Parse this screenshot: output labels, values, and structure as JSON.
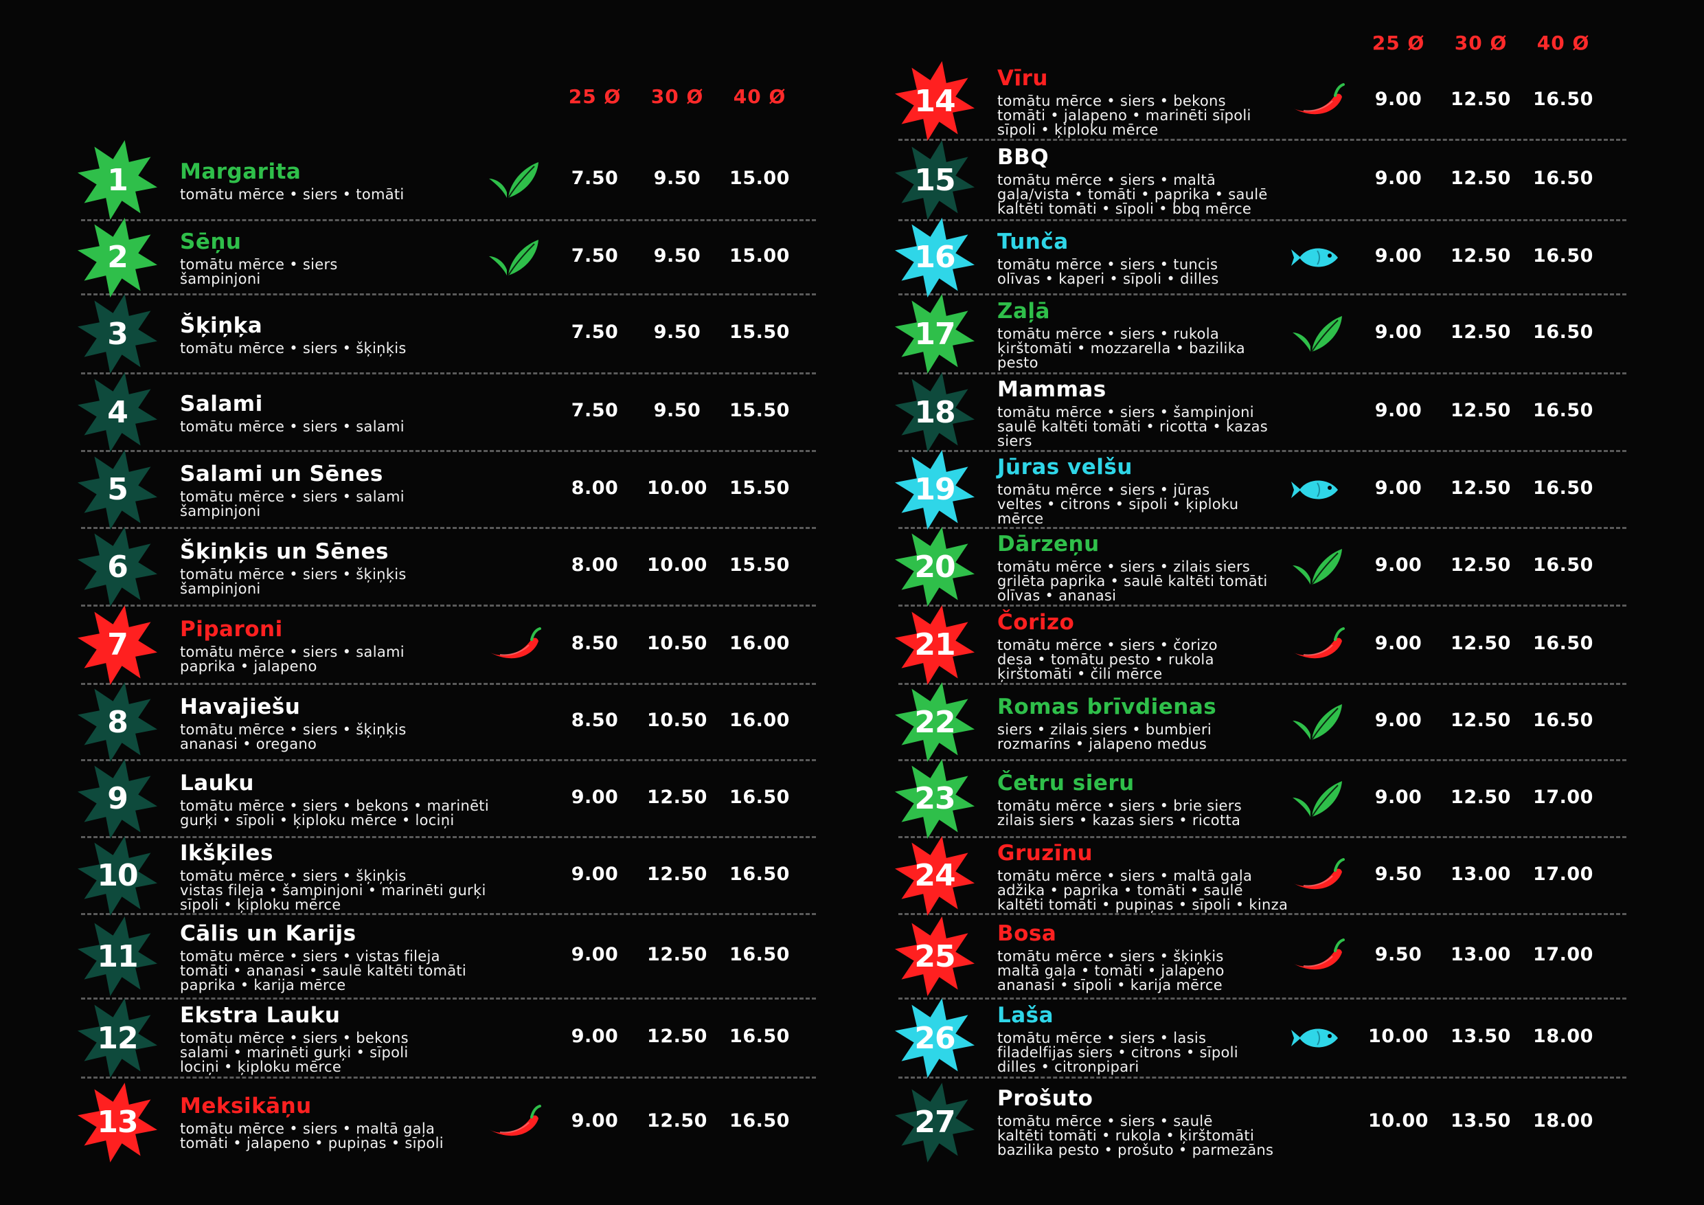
{
  "colors": {
    "background": "#060606",
    "price_header": "#ff2a2a",
    "veg": "#2fbf4a",
    "hot": "#ff2020",
    "fish": "#2fd6e8",
    "classic": "#0e4a3c",
    "divider": "#5a5a5a"
  },
  "icons": {
    "veg": "leaf-icon",
    "hot": "chili-pepper-icon",
    "fish": "fish-icon"
  },
  "sizes": [
    "25 Ø",
    "30 Ø",
    "40 Ø"
  ],
  "left_items": [
    {
      "number": "1",
      "name": "Margarita",
      "desc": "tomātu mērce • siers • tomāti",
      "type": "veg",
      "prices": [
        "7.50",
        "9.50",
        "15.00"
      ]
    },
    {
      "number": "2",
      "name": "Sēņu",
      "desc": "tomātu mērce • siers\nšampinjoni",
      "type": "veg",
      "prices": [
        "7.50",
        "9.50",
        "15.00"
      ]
    },
    {
      "number": "3",
      "name": "Šķiņķa",
      "desc": "tomātu mērce • siers • šķiņķis",
      "type": "classic",
      "prices": [
        "7.50",
        "9.50",
        "15.50"
      ]
    },
    {
      "number": "4",
      "name": "Salami",
      "desc": "tomātu mērce • siers • salami",
      "type": "classic",
      "prices": [
        "7.50",
        "9.50",
        "15.50"
      ]
    },
    {
      "number": "5",
      "name": "Salami un Sēnes",
      "desc": "tomātu mērce • siers • salami\nšampinjoni",
      "type": "classic",
      "prices": [
        "8.00",
        "10.00",
        "15.50"
      ]
    },
    {
      "number": "6",
      "name": "Šķiņķis un Sēnes",
      "desc": "tomātu mērce • siers • šķiņķis\nšampinjoni",
      "type": "classic",
      "prices": [
        "8.00",
        "10.00",
        "15.50"
      ]
    },
    {
      "number": "7",
      "name": "Piparoni",
      "desc": "tomātu mērce • siers • salami\npaprika • jalapeno",
      "type": "hot",
      "prices": [
        "8.50",
        "10.50",
        "16.00"
      ]
    },
    {
      "number": "8",
      "name": "Havajiešu",
      "desc": "tomātu mērce • siers • šķiņķis\nananasi • oregano",
      "type": "classic",
      "prices": [
        "8.50",
        "10.50",
        "16.00"
      ]
    },
    {
      "number": "9",
      "name": "Lauku",
      "desc": "tomātu mērce • siers • bekons • marinēti\ngurķi • sīpoli • ķiploku mērce • lociņi",
      "type": "classic",
      "prices": [
        "9.00",
        "12.50",
        "16.50"
      ]
    },
    {
      "number": "10",
      "name": "Ikšķiles",
      "desc": "tomātu mērce • siers • šķiņķis\nvistas fileja • šampinjoni • marinēti gurķi\nsīpoli • ķiploku mērce",
      "type": "classic",
      "prices": [
        "9.00",
        "12.50",
        "16.50"
      ]
    },
    {
      "number": "11",
      "name": "Cālis un Karijs",
      "desc": "tomātu mērce • siers • vistas fileja\ntomāti • ananasi • saulē kaltēti tomāti\npaprika • karija mērce",
      "type": "classic",
      "prices": [
        "9.00",
        "12.50",
        "16.50"
      ]
    },
    {
      "number": "12",
      "name": "Ekstra Lauku",
      "desc": "tomātu mērce • siers • bekons\nsalami • marinēti gurķi • sīpoli\nlociņi • ķiploku mērce",
      "type": "classic",
      "prices": [
        "9.00",
        "12.50",
        "16.50"
      ]
    },
    {
      "number": "13",
      "name": "Meksikāņu",
      "desc": "tomātu mērce • siers • maltā gaļa\ntomāti • jalapeno • pupiņas • sīpoli",
      "type": "hot",
      "prices": [
        "9.00",
        "12.50",
        "16.50"
      ]
    }
  ],
  "right_items": [
    {
      "number": "14",
      "name": "Vīru",
      "desc": "tomātu mērce • siers • bekons\ntomāti • jalapeno • marinēti sīpoli\nsīpoli • ķiploku mērce",
      "type": "hot",
      "prices": [
        "9.00",
        "12.50",
        "16.50"
      ]
    },
    {
      "number": "15",
      "name": "BBQ",
      "desc": "tomātu mērce • siers • maltā\ngaļa/vista • tomāti • paprika • saulē\nkaltēti tomāti • sīpoli • bbq mērce",
      "type": "classic",
      "prices": [
        "9.00",
        "12.50",
        "16.50"
      ]
    },
    {
      "number": "16",
      "name": "Tunča",
      "desc": "tomātu mērce • siers • tuncis\nolīvas • kaperi • sīpoli • dilles",
      "type": "fish",
      "prices": [
        "9.00",
        "12.50",
        "16.50"
      ]
    },
    {
      "number": "17",
      "name": "Zaļā",
      "desc": "tomātu mērce • siers • rukola\nķirštomāti • mozzarella • bazilika\npesto",
      "type": "veg",
      "prices": [
        "9.00",
        "12.50",
        "16.50"
      ]
    },
    {
      "number": "18",
      "name": "Mammas",
      "desc": "tomātu mērce • siers • šampinjoni\nsaulē kaltēti tomāti • ricotta • kazas\nsiers",
      "type": "classic",
      "prices": [
        "9.00",
        "12.50",
        "16.50"
      ]
    },
    {
      "number": "19",
      "name": "Jūras velšu",
      "desc": "tomātu mērce • siers • jūras\nveltes • citrons • sīpoli • ķiploku\nmērce",
      "type": "fish",
      "prices": [
        "9.00",
        "12.50",
        "16.50"
      ]
    },
    {
      "number": "20",
      "name": "Dārzeņu",
      "desc": "tomātu mērce • siers • zilais siers\ngrilēta paprika • saulē kaltēti tomāti\nolīvas • ananasi",
      "type": "veg",
      "prices": [
        "9.00",
        "12.50",
        "16.50"
      ]
    },
    {
      "number": "21",
      "name": "Čorizo",
      "desc": "tomātu mērce • siers • čorizo\ndesa • tomātu pesto • rukola\nķirštomāti • čili mērce",
      "type": "hot",
      "prices": [
        "9.00",
        "12.50",
        "16.50"
      ]
    },
    {
      "number": "22",
      "name": "Romas brīvdienas",
      "desc": "siers • zilais siers • bumbieri\nrozmarīns • jalapeno medus",
      "type": "veg",
      "prices": [
        "9.00",
        "12.50",
        "16.50"
      ]
    },
    {
      "number": "23",
      "name": "Četru sieru",
      "desc": "tomātu mērce • siers • brie siers\nzilais siers • kazas siers • ricotta",
      "type": "veg",
      "prices": [
        "9.00",
        "12.50",
        "17.00"
      ]
    },
    {
      "number": "24",
      "name": "Gruzīnu",
      "desc": "tomātu mērce • siers • maltā gaļa\nadžika • paprika • tomāti • saulē\nkaltēti tomāti • pupiņas • sīpoli • kinza",
      "type": "hot",
      "prices": [
        "9.50",
        "13.00",
        "17.00"
      ]
    },
    {
      "number": "25",
      "name": "Bosa",
      "desc": "tomātu mērce • siers • šķiņķis\nmaltā gaļa • tomāti • jalapeno\nananasi • sīpoli • karija mērce",
      "type": "hot",
      "prices": [
        "9.50",
        "13.00",
        "17.00"
      ]
    },
    {
      "number": "26",
      "name": "Laša",
      "desc": "tomātu mērce • siers • lasis\nfiladelfijas siers • citrons • sīpoli\ndilles • citronpipari",
      "type": "fish",
      "prices": [
        "10.00",
        "13.50",
        "18.00"
      ]
    },
    {
      "number": "27",
      "name": "Prošuto",
      "desc": "tomātu mērce • siers • saulē\nkaltēti tomāti • rukola • ķirštomāti\nbazilika pesto • prošuto • parmezāns",
      "type": "classic",
      "prices": [
        "10.00",
        "13.50",
        "18.00"
      ]
    }
  ]
}
